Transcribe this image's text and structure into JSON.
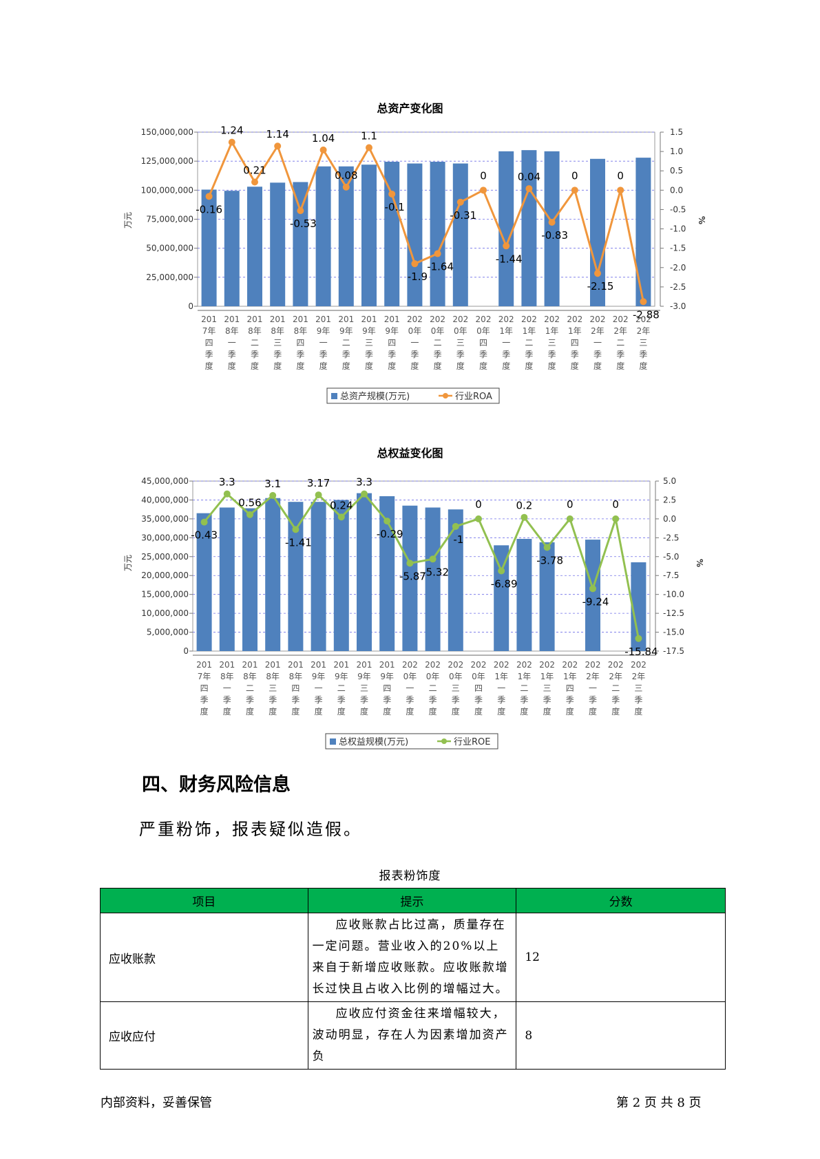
{
  "chart_data": [
    {
      "type": "bar",
      "title": "总资产变化图",
      "ylabel_left": "万元",
      "ylabel_right": "%",
      "ylim_left": [
        0,
        150000000
      ],
      "ylim_right": [
        -3.0,
        1.5
      ],
      "left_ticks": [
        0,
        25000000,
        50000000,
        75000000,
        100000000,
        125000000,
        150000000
      ],
      "left_tick_labels": [
        "0",
        "25,000,000",
        "50,000,000",
        "75,000,000",
        "100,000,000",
        "125,000,000",
        "150,000,000"
      ],
      "right_ticks": [
        -3.0,
        -2.5,
        -2.0,
        -1.5,
        -1.0,
        -0.5,
        0.0,
        0.5,
        1.0,
        1.5
      ],
      "right_tick_labels": [
        "-3.0",
        "-2.5",
        "-2.0",
        "-1.5",
        "-1.0",
        "-0.5",
        "0.0",
        "0.5",
        "1.0",
        "1.5"
      ],
      "categories": [
        [
          "201",
          "7年",
          "四",
          "季",
          "度"
        ],
        [
          "201",
          "8年",
          "一",
          "季",
          "度"
        ],
        [
          "201",
          "8年",
          "二",
          "季",
          "度"
        ],
        [
          "201",
          "8年",
          "三",
          "季",
          "度"
        ],
        [
          "201",
          "8年",
          "四",
          "季",
          "度"
        ],
        [
          "201",
          "9年",
          "一",
          "季",
          "度"
        ],
        [
          "201",
          "9年",
          "二",
          "季",
          "度"
        ],
        [
          "201",
          "9年",
          "三",
          "季",
          "度"
        ],
        [
          "201",
          "9年",
          "四",
          "季",
          "度"
        ],
        [
          "202",
          "0年",
          "一",
          "季",
          "度"
        ],
        [
          "202",
          "0年",
          "二",
          "季",
          "度"
        ],
        [
          "202",
          "0年",
          "三",
          "季",
          "度"
        ],
        [
          "202",
          "0年",
          "四",
          "季",
          "度"
        ],
        [
          "202",
          "1年",
          "一",
          "季",
          "度"
        ],
        [
          "202",
          "1年",
          "二",
          "季",
          "度"
        ],
        [
          "202",
          "1年",
          "三",
          "季",
          "度"
        ],
        [
          "202",
          "1年",
          "四",
          "季",
          "度"
        ],
        [
          "202",
          "2年",
          "一",
          "季",
          "度"
        ],
        [
          "202",
          "2年",
          "二",
          "季",
          "度"
        ],
        [
          "202",
          "2年",
          "三",
          "季",
          "度"
        ]
      ],
      "series": [
        {
          "name": "总资产规模(万元)",
          "kind": "bar",
          "axis": "left",
          "color": "#4f81bd",
          "values": [
            100500000,
            99500000,
            103000000,
            106500000,
            107000000,
            120500000,
            120500000,
            122000000,
            124500000,
            123000000,
            124500000,
            123000000,
            0,
            133500000,
            134500000,
            133500000,
            0,
            127000000,
            0,
            128000000
          ]
        },
        {
          "name": "行业ROA",
          "kind": "line",
          "axis": "right",
          "color": "#f0963c",
          "values": [
            -0.16,
            1.24,
            0.21,
            1.14,
            -0.53,
            1.04,
            0.08,
            1.1,
            -0.1,
            -1.9,
            -1.64,
            -0.31,
            0,
            -1.44,
            0.04,
            -0.83,
            0,
            -2.15,
            0,
            -2.88
          ],
          "labels": [
            "-0.16",
            "1.24",
            "0.21",
            "1.14",
            "-0.53",
            "1.04",
            "0.08",
            "1.1",
            "-0.1",
            "-1.9",
            "-1.64",
            "-0.31",
            "0",
            "-1.44",
            "0.04",
            "-0.83",
            "0",
            "-2.15",
            "0",
            "-2.88"
          ]
        }
      ],
      "grid": true,
      "legend": "bottom-center"
    },
    {
      "type": "bar",
      "title": "总权益变化图",
      "ylabel_left": "万元",
      "ylabel_right": "%",
      "ylim_left": [
        0,
        45000000
      ],
      "ylim_right": [
        -17.5,
        5.0
      ],
      "left_ticks": [
        0,
        5000000,
        10000000,
        15000000,
        20000000,
        25000000,
        30000000,
        35000000,
        40000000,
        45000000
      ],
      "left_tick_labels": [
        "0",
        "5,000,000",
        "10,000,000",
        "15,000,000",
        "20,000,000",
        "25,000,000",
        "30,000,000",
        "35,000,000",
        "40,000,000",
        "45,000,000"
      ],
      "right_ticks": [
        -17.5,
        -15.0,
        -12.5,
        -10.0,
        -7.5,
        -5.0,
        -2.5,
        0.0,
        2.5,
        5.0
      ],
      "right_tick_labels": [
        "-17.5",
        "-15.0",
        "-12.5",
        "-10.0",
        "-7.5",
        "-5.0",
        "-2.5",
        "0.0",
        "2.5",
        "5.0"
      ],
      "categories": [
        [
          "201",
          "7年",
          "四",
          "季",
          "度"
        ],
        [
          "201",
          "8年",
          "一",
          "季",
          "度"
        ],
        [
          "201",
          "8年",
          "二",
          "季",
          "度"
        ],
        [
          "201",
          "8年",
          "三",
          "季",
          "度"
        ],
        [
          "201",
          "8年",
          "四",
          "季",
          "度"
        ],
        [
          "201",
          "9年",
          "一",
          "季",
          "度"
        ],
        [
          "201",
          "9年",
          "二",
          "季",
          "度"
        ],
        [
          "201",
          "9年",
          "三",
          "季",
          "度"
        ],
        [
          "201",
          "9年",
          "四",
          "季",
          "度"
        ],
        [
          "202",
          "0年",
          "一",
          "季",
          "度"
        ],
        [
          "202",
          "0年",
          "二",
          "季",
          "度"
        ],
        [
          "202",
          "0年",
          "三",
          "季",
          "度"
        ],
        [
          "202",
          "0年",
          "四",
          "季",
          "度"
        ],
        [
          "202",
          "1年",
          "一",
          "季",
          "度"
        ],
        [
          "202",
          "1年",
          "二",
          "季",
          "度"
        ],
        [
          "202",
          "1年",
          "三",
          "季",
          "度"
        ],
        [
          "202",
          "1年",
          "四",
          "季",
          "度"
        ],
        [
          "202",
          "2年",
          "一",
          "季",
          "度"
        ],
        [
          "202",
          "2年",
          "二",
          "季",
          "度"
        ],
        [
          "202",
          "2年",
          "三",
          "季",
          "度"
        ]
      ],
      "series": [
        {
          "name": "总权益规模(万元)",
          "kind": "bar",
          "axis": "left",
          "color": "#4f81bd",
          "values": [
            36500000,
            38000000,
            37800000,
            40500000,
            39500000,
            39500000,
            40000000,
            41800000,
            41000000,
            38500000,
            38000000,
            37500000,
            0,
            28000000,
            29700000,
            28800000,
            0,
            29500000,
            0,
            23500000
          ]
        },
        {
          "name": "行业ROE",
          "kind": "line",
          "axis": "right",
          "color": "#92c050",
          "values": [
            -0.43,
            3.3,
            0.56,
            3.1,
            -1.41,
            3.17,
            0.24,
            3.3,
            -0.29,
            -5.87,
            -5.32,
            -1,
            0,
            -6.89,
            0.2,
            -3.78,
            0,
            -9.24,
            0,
            -15.84
          ],
          "labels": [
            "-0.43",
            "3.3",
            "0.56",
            "3.1",
            "-1.41",
            "3.17",
            "0.24",
            "3.3",
            "-0.29",
            "-5.87",
            "-5.32",
            "-1",
            "0",
            "-6.89",
            "0.2",
            "-3.78",
            "0",
            "-9.24",
            "0",
            "-15.84"
          ]
        }
      ],
      "grid": true,
      "legend": "bottom-center"
    }
  ],
  "section": {
    "heading": "四、财务风险信息",
    "body": "严重粉饰，报表疑似造假。"
  },
  "table": {
    "caption": "报表粉饰度",
    "headers": [
      "项目",
      "提示",
      "分数"
    ],
    "header_color": "#00b050",
    "rows": [
      {
        "item": "应收账款",
        "hint": "应收账款占比过高，质量存在一定问题。营业收入的20%以上来自于新增应收账款。应收账款增长过快且占收入比例的增幅过大。",
        "score": "12"
      },
      {
        "item": "应收应付",
        "hint": "应收应付资金往来增幅较大，波动明显，存在人为因素增加资产负",
        "score": "8"
      }
    ]
  },
  "footer": {
    "left": "内部资料，妥善保管",
    "right": "第 2 页  共 8 页"
  }
}
